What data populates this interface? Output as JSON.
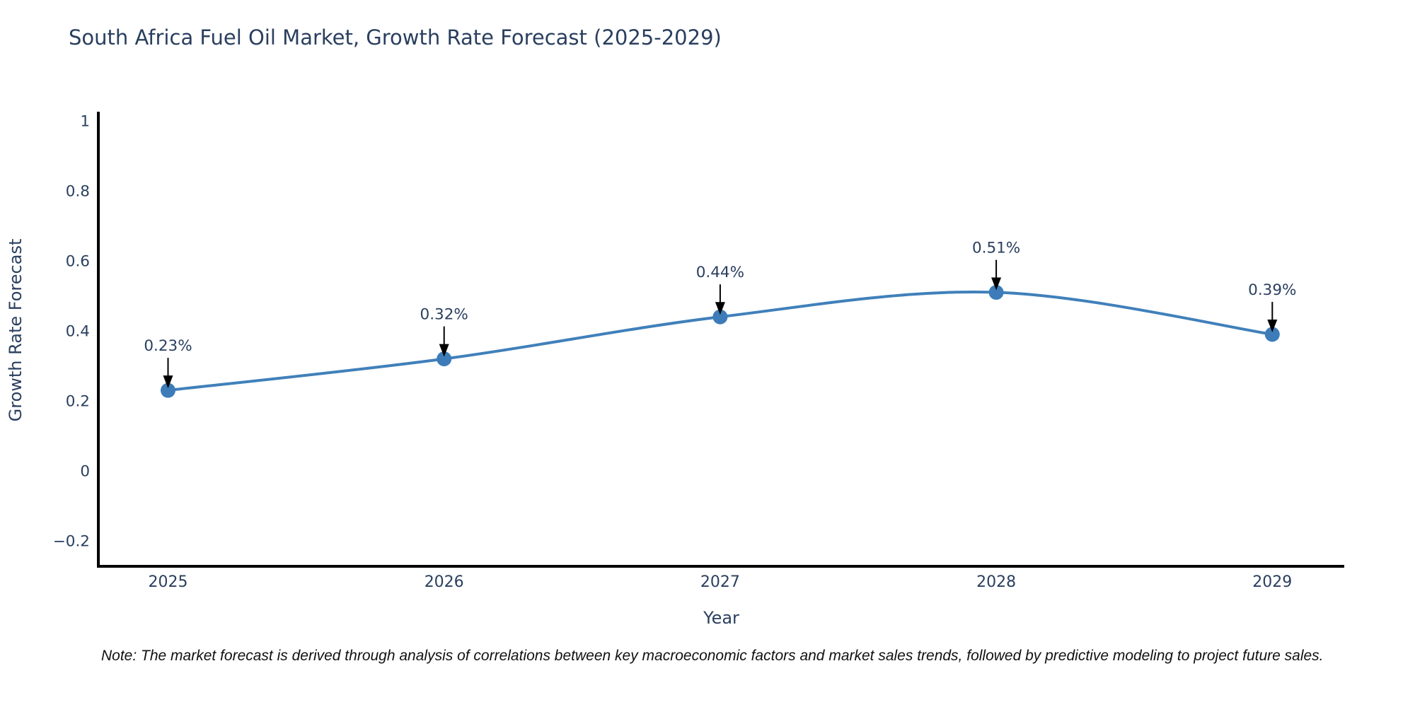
{
  "chart_data": {
    "type": "line",
    "title": "South Africa Fuel Oil Market, Growth Rate Forecast (2025-2029)",
    "xlabel": "Year",
    "ylabel": "Growth Rate Forecast",
    "line_shape": "spline",
    "mode": "lines+markers+annotations",
    "grid": false,
    "legend_position": "none",
    "x": [
      2025,
      2026,
      2027,
      2028,
      2029
    ],
    "values": [
      0.23,
      0.32,
      0.44,
      0.51,
      0.39
    ],
    "point_labels": [
      "0.23%",
      "0.32%",
      "0.44%",
      "0.51%",
      "0.39%"
    ],
    "x_tick_labels": [
      "2025",
      "2026",
      "2027",
      "2028",
      "2029"
    ],
    "y_ticks": [
      1,
      0.8,
      0.6,
      0.4,
      0.2,
      0,
      -0.2
    ],
    "y_tick_labels": [
      "1",
      "0.8",
      "0.6",
      "0.4",
      "0.2",
      "0",
      "−0.2"
    ],
    "ylim": [
      -0.27,
      1.03
    ],
    "xlim": [
      2024.74,
      2029.26
    ],
    "colors": {
      "line": "#4080ba",
      "marker": "#3d7cb8",
      "axis_line": "#000000",
      "tick_text": "#2a3f5f",
      "annotation_text": "#2a3f5f",
      "annotation_arrow": "#000000",
      "title_text": "#2a3f5f",
      "background": "#ffffff"
    }
  },
  "note": {
    "text": "Note: The market forecast is derived through analysis of correlations between key macroeconomic factors and market sales trends, followed by predictive modeling to project future sales."
  }
}
